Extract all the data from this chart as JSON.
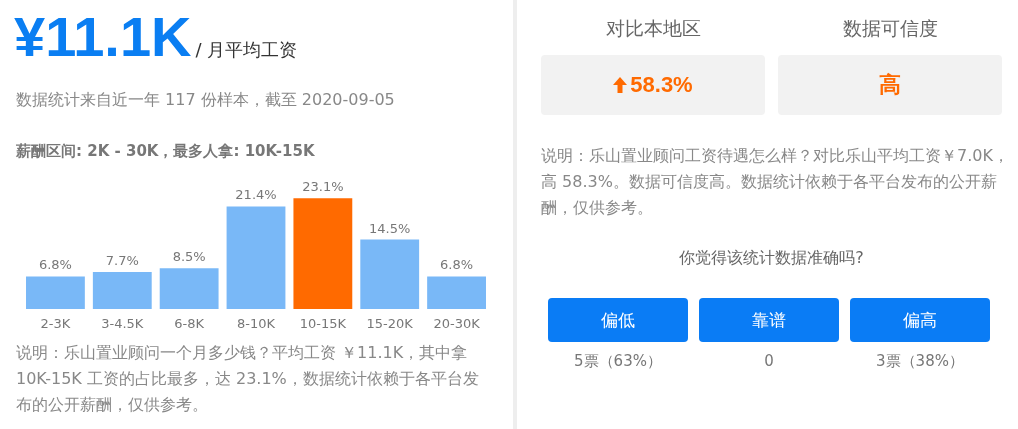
{
  "chart_data": [
    {
      "type": "other",
      "title": "¥11.1K",
      "subtitle": "/ 月平均工资",
      "annotations": [
        "数据统计来自近一年 117 份样本，截至 2020-09-05",
        "薪酬区间: 2K - 30K，最多人拿: 10K-15K"
      ]
    },
    {
      "type": "bar",
      "categories": [
        "2-3K",
        "3-4.5K",
        "6-8K",
        "8-10K",
        "10-15K",
        "15-20K",
        "20-30K"
      ],
      "values": [
        6.8,
        7.7,
        8.5,
        21.4,
        23.1,
        14.5,
        6.8
      ],
      "colors": [
        "#79b8f7",
        "#79b8f7",
        "#79b8f7",
        "#79b8f7",
        "#ff6a00",
        "#79b8f7",
        "#79b8f7"
      ],
      "value_labels": [
        "6.8%",
        "7.7%",
        "8.5%",
        "21.4%",
        "23.1%",
        "14.5%",
        "6.8%"
      ],
      "annotations": [
        "说明：乐山置业顾问一个月多少钱？平均工资 ￥11.1K，其中拿 10K-15K 工资的占比最多，达 23.1%，数据统计依赖于各平台发布的公开薪酬，仅供参考。"
      ]
    },
    {
      "type": "other",
      "annotations": [
        "对比本地区",
        "数据可信度",
        "58.3%",
        "高",
        "说明：乐山置业顾问工资待遇怎么样？对比乐山平均工资￥7.0K，高 58.3%。数据可信度高。数据统计依赖于各平台发布的公开薪酬，仅供参考。",
        "你觉得该统计数据准确吗?",
        "偏低",
        "靠谱",
        "偏高",
        "5票（63%）",
        "0",
        "3票（38%）"
      ]
    }
  ]
}
